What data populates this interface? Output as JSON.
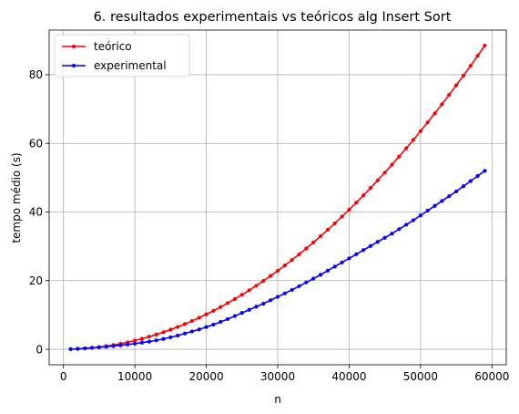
{
  "chart_data": {
    "type": "line",
    "title": "6. resultados experimentais vs teóricos alg Insert Sort",
    "xlabel": "n",
    "ylabel": "tempo médio (s)",
    "xlim": [
      -2000,
      62000
    ],
    "ylim": [
      -4.5,
      93
    ],
    "xticks": [
      0,
      10000,
      20000,
      30000,
      40000,
      50000,
      60000
    ],
    "yticks": [
      0,
      20,
      40,
      60,
      80
    ],
    "grid": true,
    "legend_position": "top-left",
    "x": [
      1000,
      2000,
      3000,
      4000,
      5000,
      6000,
      7000,
      8000,
      9000,
      10000,
      11000,
      12000,
      13000,
      14000,
      15000,
      16000,
      17000,
      18000,
      19000,
      20000,
      21000,
      22000,
      23000,
      24000,
      25000,
      26000,
      27000,
      28000,
      29000,
      30000,
      31000,
      32000,
      33000,
      34000,
      35000,
      36000,
      37000,
      38000,
      39000,
      40000,
      41000,
      42000,
      43000,
      44000,
      45000,
      46000,
      47000,
      48000,
      49000,
      50000,
      51000,
      52000,
      53000,
      54000,
      55000,
      56000,
      57000,
      58000,
      59000
    ],
    "series": [
      {
        "name": "teórico",
        "color": "#ff0000",
        "values": [
          0.03,
          0.1,
          0.23,
          0.41,
          0.64,
          0.92,
          1.25,
          1.63,
          2.06,
          2.54,
          3.08,
          3.66,
          4.3,
          4.98,
          5.72,
          6.51,
          7.35,
          8.24,
          9.18,
          10.17,
          11.21,
          12.3,
          13.45,
          14.64,
          15.89,
          17.18,
          18.53,
          19.93,
          21.37,
          22.87,
          24.43,
          26.03,
          27.68,
          29.38,
          31.13,
          32.94,
          34.8,
          36.7,
          38.66,
          40.67,
          42.73,
          44.84,
          47.0,
          49.21,
          51.47,
          53.79,
          56.15,
          58.57,
          61.03,
          63.55,
          66.12,
          68.73,
          71.4,
          74.12,
          76.89,
          79.71,
          82.59,
          85.51,
          88.48
        ]
      },
      {
        "name": "experimental",
        "color": "#0000ff",
        "values": [
          0.05,
          0.15,
          0.3,
          0.45,
          0.6,
          0.75,
          0.95,
          1.15,
          1.4,
          1.65,
          1.95,
          2.25,
          2.6,
          3.0,
          3.5,
          4.0,
          4.6,
          5.2,
          5.8,
          6.5,
          7.2,
          8.0,
          8.8,
          9.7,
          10.6,
          11.5,
          12.4,
          13.3,
          14.3,
          15.3,
          16.3,
          17.3,
          18.4,
          19.5,
          20.6,
          21.7,
          22.9,
          24.1,
          25.3,
          26.5,
          27.7,
          28.9,
          30.1,
          31.3,
          32.5,
          33.7,
          35.0,
          36.3,
          37.6,
          39.0,
          40.4,
          41.8,
          43.2,
          44.6,
          46.0,
          47.5,
          49.0,
          50.5,
          52.0
        ]
      }
    ]
  }
}
